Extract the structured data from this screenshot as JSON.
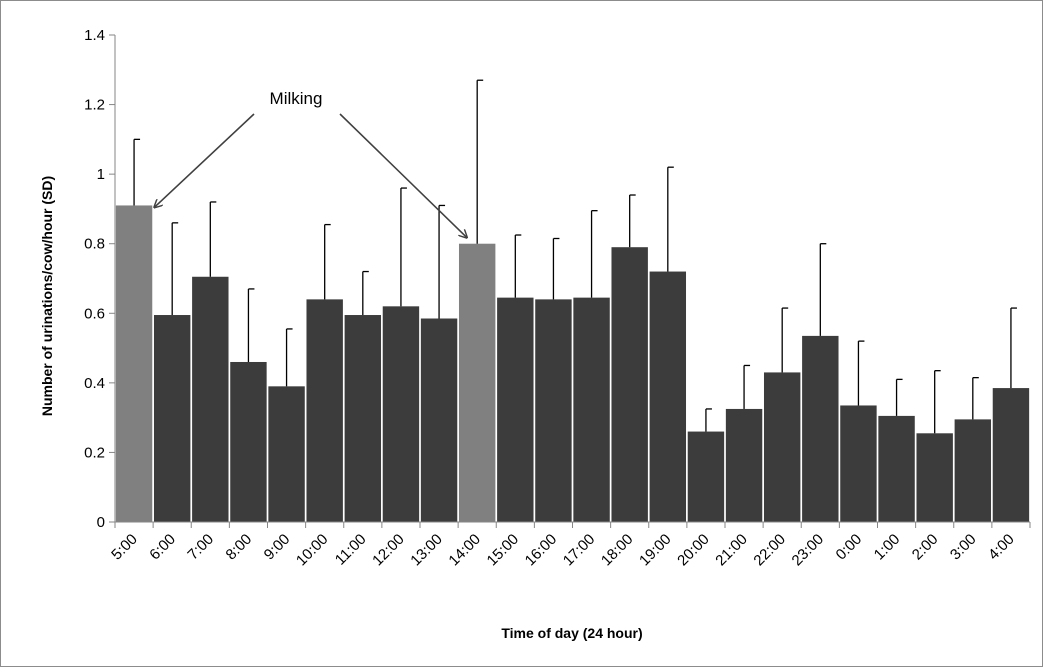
{
  "chart_data": {
    "type": "bar",
    "xlabel": "Time of day (24 hour)",
    "ylabel": "Number of urinations/cow/hour (SD)",
    "ylim": [
      0,
      1.4
    ],
    "yticks": [
      0,
      0.2,
      0.4,
      0.6,
      0.8,
      1,
      1.2,
      1.4
    ],
    "grid": false,
    "categories": [
      "5:00",
      "6:00",
      "7:00",
      "8:00",
      "9:00",
      "10:00",
      "11:00",
      "12:00",
      "13:00",
      "14:00",
      "15:00",
      "16:00",
      "17:00",
      "18:00",
      "19:00",
      "20:00",
      "21:00",
      "22:00",
      "23:00",
      "0:00",
      "1:00",
      "2:00",
      "3:00",
      "4:00"
    ],
    "values": [
      0.91,
      0.595,
      0.705,
      0.46,
      0.39,
      0.64,
      0.595,
      0.62,
      0.585,
      0.8,
      0.645,
      0.64,
      0.645,
      0.79,
      0.72,
      0.26,
      0.325,
      0.43,
      0.535,
      0.335,
      0.305,
      0.255,
      0.295,
      0.385
    ],
    "error_upper": [
      1.1,
      0.86,
      0.92,
      0.67,
      0.555,
      0.855,
      0.72,
      0.96,
      0.91,
      1.27,
      0.825,
      0.815,
      0.895,
      0.94,
      1.02,
      0.325,
      0.45,
      0.615,
      0.8,
      0.52,
      0.41,
      0.435,
      0.415,
      0.615
    ],
    "highlighted": [
      "5:00",
      "14:00"
    ],
    "colors": {
      "bar": "#3c3c3c",
      "highlight": "#808080",
      "axis": "#868686"
    },
    "annotation": {
      "text": "Milking",
      "targets": [
        "5:00",
        "14:00"
      ]
    }
  }
}
